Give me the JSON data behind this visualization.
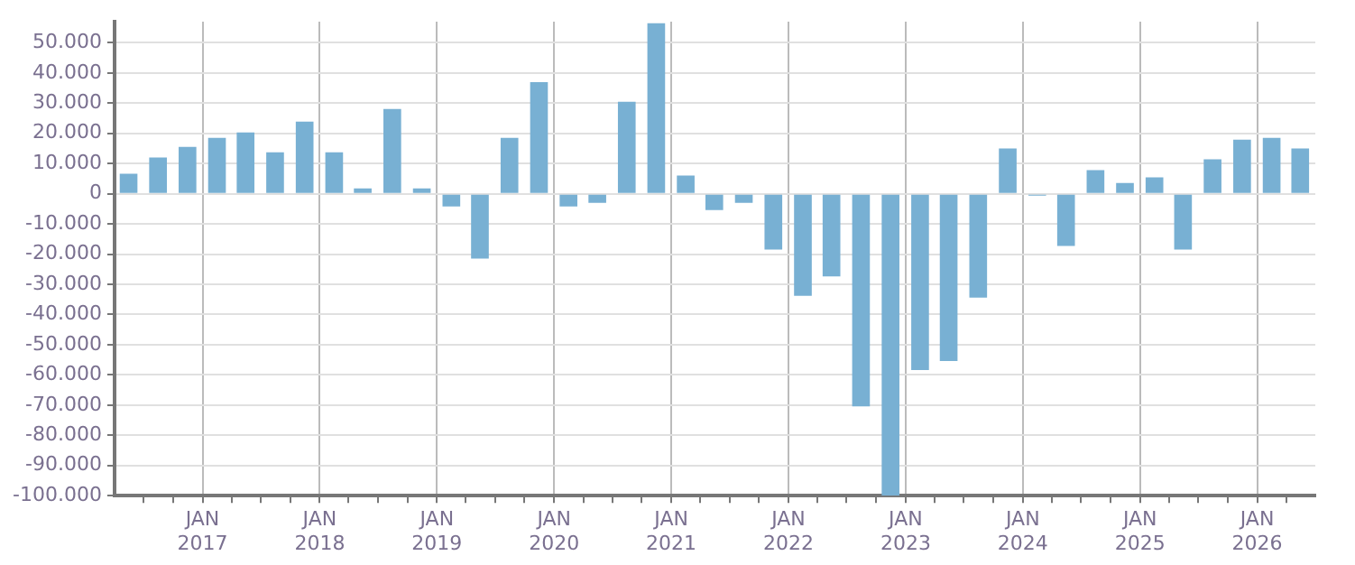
{
  "chart_data": {
    "type": "bar",
    "x": [
      "2016-05-15",
      "2016-08-15",
      "2016-11-15",
      "2017-02-15",
      "2017-05-15",
      "2017-08-15",
      "2017-11-15",
      "2018-02-15",
      "2018-05-15",
      "2018-08-15",
      "2018-11-15",
      "2019-02-15",
      "2019-05-15",
      "2019-08-15",
      "2019-11-15",
      "2020-02-15",
      "2020-05-15",
      "2020-08-15",
      "2020-11-15",
      "2021-02-15",
      "2021-05-15",
      "2021-08-15",
      "2021-11-15",
      "2022-02-15",
      "2022-05-15",
      "2022-08-15",
      "2022-11-15",
      "2023-02-15",
      "2023-05-15",
      "2023-08-15",
      "2023-11-15",
      "2024-02-15",
      "2024-05-15",
      "2024-08-15",
      "2024-11-15",
      "2025-02-15",
      "2025-05-15",
      "2025-08-15",
      "2025-11-15",
      "2026-02-15",
      "2026-05-15"
    ],
    "series": [
      {
        "color": "#78b0d3",
        "values": [
          6600,
          12000,
          15500,
          18500,
          20300,
          13700,
          23900,
          13700,
          1800,
          28100,
          1800,
          -4200,
          -21500,
          18500,
          37000,
          -4200,
          -3000,
          30500,
          56500,
          6000,
          -5400,
          -3000,
          -18500,
          -33800,
          -27400,
          -70400,
          -100000,
          -58400,
          -55400,
          -34400,
          15000,
          -600,
          -17300,
          7800,
          3600,
          5400,
          -18500,
          11400,
          17900,
          18500,
          15000
        ]
      }
    ],
    "xlim": [
      "2016-04-01",
      "2026-07-01"
    ],
    "xticks": [
      {
        "value": "2016-07-01",
        "label": null
      },
      {
        "value": "2016-10-01",
        "label": null
      },
      {
        "value": "2017-01-01",
        "label": "JAN 2017"
      },
      {
        "value": "2017-04-01",
        "label": null
      },
      {
        "value": "2017-07-01",
        "label": null
      },
      {
        "value": "2017-10-01",
        "label": null
      },
      {
        "value": "2018-01-01",
        "label": "JAN 2018"
      },
      {
        "value": "2018-04-01",
        "label": null
      },
      {
        "value": "2018-07-01",
        "label": null
      },
      {
        "value": "2018-10-01",
        "label": null
      },
      {
        "value": "2019-01-01",
        "label": "JAN 2019"
      },
      {
        "value": "2019-04-01",
        "label": null
      },
      {
        "value": "2019-07-01",
        "label": null
      },
      {
        "value": "2019-10-01",
        "label": null
      },
      {
        "value": "2020-01-01",
        "label": "JAN 2020"
      },
      {
        "value": "2020-04-01",
        "label": null
      },
      {
        "value": "2020-07-01",
        "label": null
      },
      {
        "value": "2020-10-01",
        "label": null
      },
      {
        "value": "2021-01-01",
        "label": "JAN 2021"
      },
      {
        "value": "2021-04-01",
        "label": null
      },
      {
        "value": "2021-07-01",
        "label": null
      },
      {
        "value": "2021-10-01",
        "label": null
      },
      {
        "value": "2022-01-01",
        "label": "JAN 2022"
      },
      {
        "value": "2022-04-01",
        "label": null
      },
      {
        "value": "2022-07-01",
        "label": null
      },
      {
        "value": "2022-10-01",
        "label": null
      },
      {
        "value": "2023-01-01",
        "label": "JAN 2023"
      },
      {
        "value": "2023-04-01",
        "label": null
      },
      {
        "value": "2023-07-01",
        "label": null
      },
      {
        "value": "2023-10-01",
        "label": null
      },
      {
        "value": "2024-01-01",
        "label": "JAN 2024"
      },
      {
        "value": "2024-04-01",
        "label": null
      },
      {
        "value": "2024-07-01",
        "label": null
      },
      {
        "value": "2024-10-01",
        "label": null
      },
      {
        "value": "2025-01-01",
        "label": "JAN 2025"
      },
      {
        "value": "2025-04-01",
        "label": null
      },
      {
        "value": "2025-07-01",
        "label": null
      },
      {
        "value": "2025-10-01",
        "label": null
      },
      {
        "value": "2026-01-01",
        "label": "JAN 2026"
      },
      {
        "value": "2026-04-01",
        "label": null
      }
    ],
    "ylim": [
      -100000,
      57000
    ],
    "yticks": [
      {
        "value": -100000,
        "label": "-100.000"
      },
      {
        "value": -90000,
        "label": "-90.000"
      },
      {
        "value": -80000,
        "label": "-80.000"
      },
      {
        "value": -70000,
        "label": "-70.000"
      },
      {
        "value": -60000,
        "label": "-60.000"
      },
      {
        "value": -50000,
        "label": "-50.000"
      },
      {
        "value": -40000,
        "label": "-40.000"
      },
      {
        "value": -30000,
        "label": "-30.000"
      },
      {
        "value": -20000,
        "label": "-20.000"
      },
      {
        "value": -10000,
        "label": "-10.000"
      },
      0,
      {
        "value": 10000,
        "label": "10.000"
      },
      {
        "value": 20000,
        "label": "20.000"
      },
      {
        "value": 30000,
        "label": "30.000"
      },
      {
        "value": 40000,
        "label": "40.000"
      },
      {
        "value": 50000,
        "label": "50.000"
      }
    ],
    "grid": true,
    "legend": false
  }
}
